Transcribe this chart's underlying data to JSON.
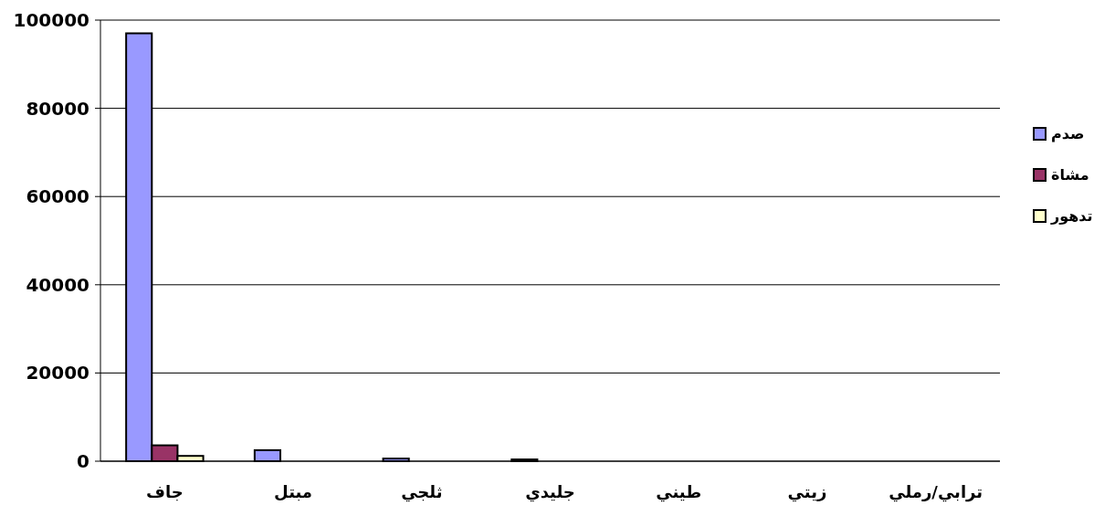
{
  "chart_data": {
    "type": "bar",
    "categories": [
      "جاف",
      "مبتل",
      "ثلجي",
      "جليدي",
      "طيني",
      "زيتي",
      "ترابي/رملي"
    ],
    "series": [
      {
        "name": "صدم",
        "color": "#9999ff",
        "values": [
          97000,
          2500,
          600,
          400,
          0,
          0,
          0
        ]
      },
      {
        "name": "مشاة",
        "color": "#993366",
        "values": [
          3600,
          0,
          0,
          0,
          0,
          0,
          0
        ]
      },
      {
        "name": "تدهور",
        "color": "#ffffcc",
        "values": [
          1200,
          0,
          0,
          0,
          0,
          0,
          0
        ]
      }
    ],
    "ylim": [
      0,
      100000
    ],
    "yticks": [
      0,
      20000,
      40000,
      60000,
      80000,
      100000
    ],
    "grid": "y",
    "legend": "right"
  }
}
